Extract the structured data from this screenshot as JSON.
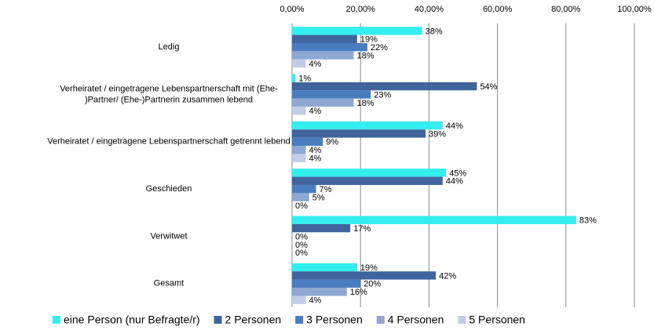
{
  "chart_data": {
    "type": "hbar",
    "categories": [
      "Ledig",
      "Verheiratet / eingetragene Lebenspartnerschaft mit (Ehe-\n)Partner/ (Ehe-)Partnerin zusammen lebend",
      "Verheiratet / eingetragene Lebenspartnerschaft getrennt lebend",
      "Geschieden",
      "Verwitwet",
      "Gesamt"
    ],
    "series": [
      {
        "name": "eine Person (nur Befragte/r)",
        "color": "#33eeee",
        "values": [
          38,
          1,
          44,
          45,
          83,
          19
        ],
        "value_labels": [
          "38%",
          "1%",
          "44%",
          "45%",
          "83%",
          "19%"
        ]
      },
      {
        "name": "2 Personen",
        "color": "#3f659c",
        "values": [
          19,
          54,
          39,
          44,
          17,
          42
        ],
        "value_labels": [
          "19%",
          "54%",
          "39%",
          "44%",
          "17%",
          "42%"
        ]
      },
      {
        "name": "3 Personen",
        "color": "#4a7cc0",
        "values": [
          22,
          23,
          9,
          7,
          0,
          20
        ],
        "value_labels": [
          "22%",
          "23%",
          "9%",
          "7%",
          "0%",
          "20%"
        ]
      },
      {
        "name": "4 Personen",
        "color": "#8ea7d3",
        "values": [
          18,
          18,
          4,
          5,
          0,
          16
        ],
        "value_labels": [
          "18%",
          "18%",
          "4%",
          "5%",
          "0%",
          "16%"
        ]
      },
      {
        "name": "5 Personen",
        "color": "#c2cce6",
        "values": [
          4,
          4,
          4,
          0,
          0,
          4
        ],
        "value_labels": [
          "4%",
          "4%",
          "4%",
          "0%",
          "0%",
          "4%"
        ]
      }
    ],
    "xlim": [
      0,
      100
    ],
    "xticks": [
      {
        "value": 0,
        "label": "0,00%"
      },
      {
        "value": 20,
        "label": "20,00%"
      },
      {
        "value": 40,
        "label": "40,00%"
      },
      {
        "value": 60,
        "label": "60,00%"
      },
      {
        "value": 80,
        "label": "80,00%"
      },
      {
        "value": 100,
        "label": "100,00%"
      }
    ],
    "grid": true,
    "legend": "bottom"
  }
}
